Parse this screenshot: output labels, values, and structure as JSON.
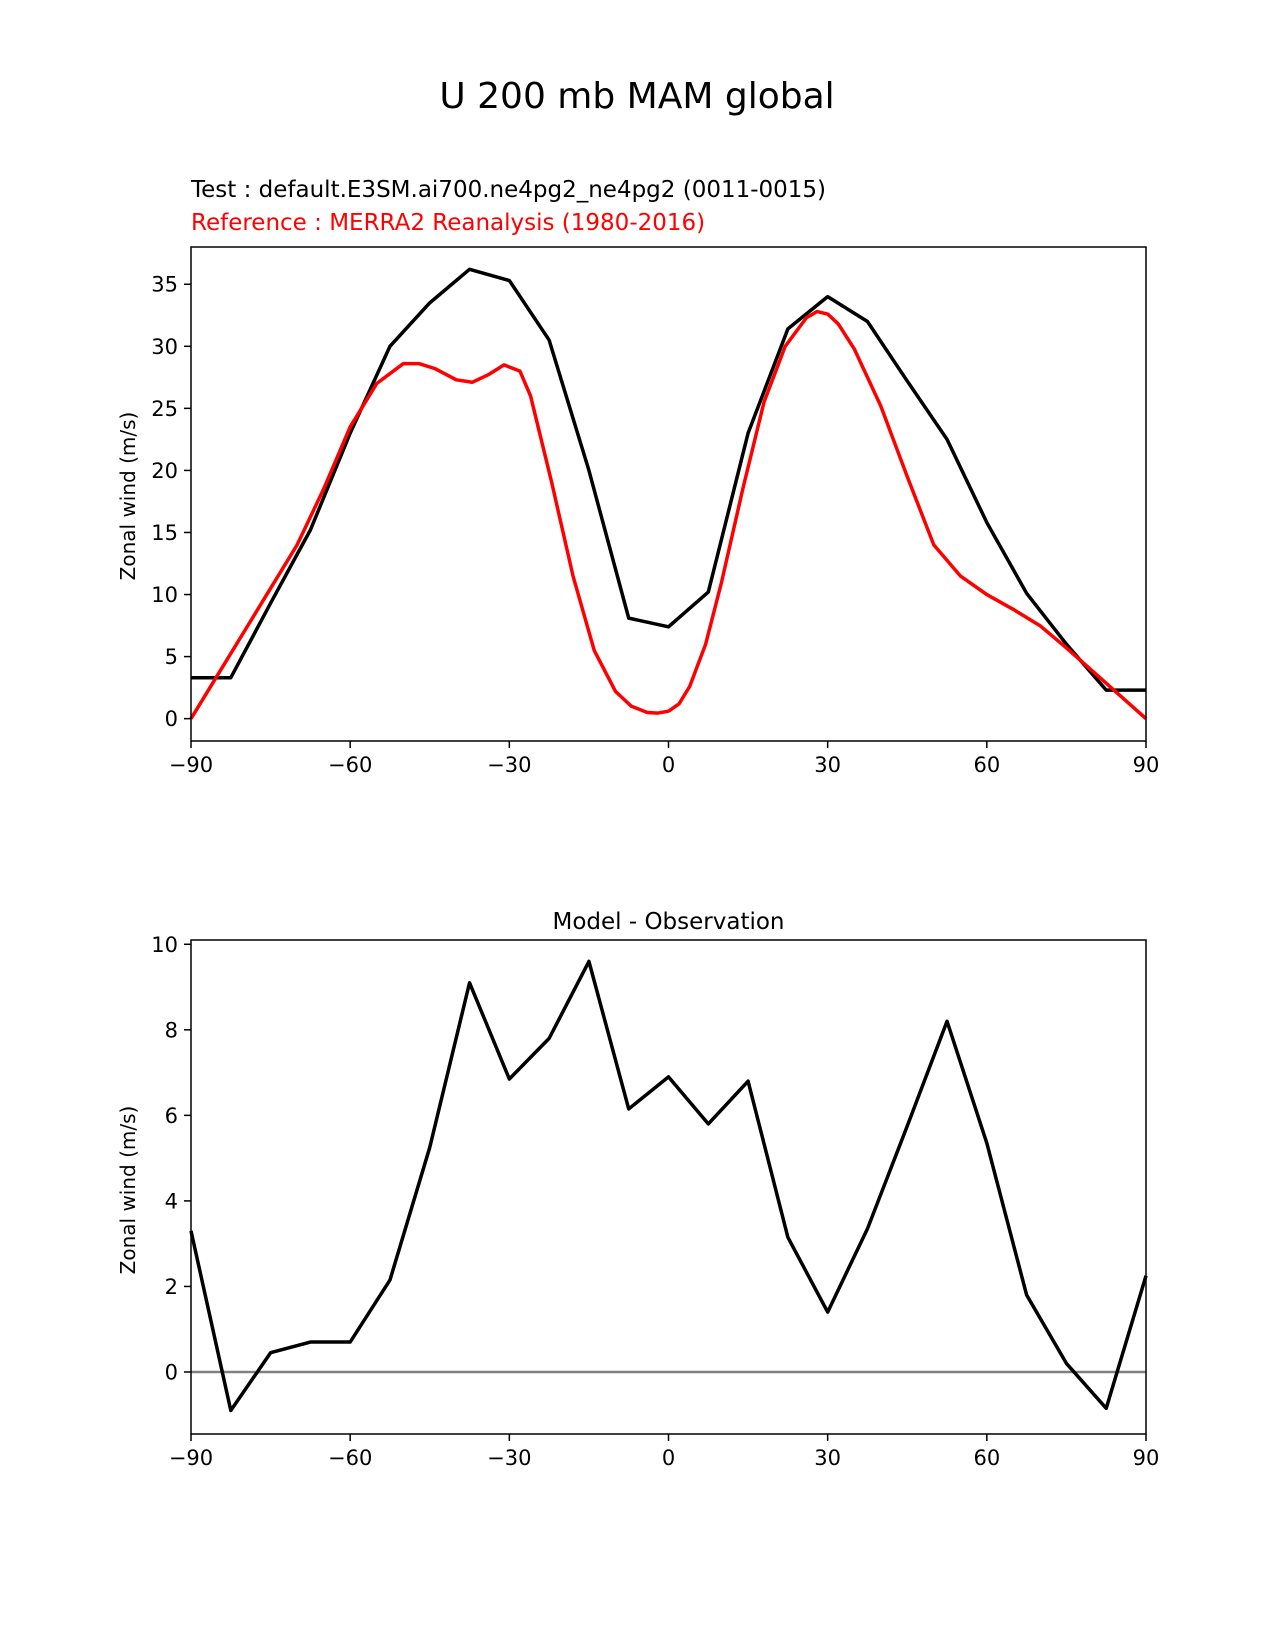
{
  "figure": {
    "title": "U 200 mb MAM global"
  },
  "colors": {
    "test": "#000000",
    "reference": "#ff0000",
    "zero_line": "#808080"
  },
  "chart_data": [
    {
      "type": "line",
      "test_label": "Test : default.E3SM.ai700.ne4pg2_ne4pg2 (0011-0015)",
      "reference_label": "Reference : MERRA2 Reanalysis (1980-2016)",
      "xlabel": "",
      "ylabel": "Zonal wind (m/s)",
      "xlim": [
        -90,
        90
      ],
      "ylim": [
        -1.8,
        38
      ],
      "xticks": [
        -90,
        -60,
        -30,
        0,
        30,
        60,
        90
      ],
      "xtick_labels": [
        "−90",
        "−60",
        "−30",
        "0",
        "30",
        "60",
        "90"
      ],
      "yticks": [
        0,
        5,
        10,
        15,
        20,
        25,
        30,
        35
      ],
      "series": [
        {
          "name": "Test",
          "color": "#000000",
          "x": [
            -90,
            -82.5,
            -75,
            -67.5,
            -60,
            -52.5,
            -45,
            -37.5,
            -30,
            -22.5,
            -15,
            -7.5,
            0,
            7.5,
            15,
            22.5,
            30,
            37.5,
            45,
            52.5,
            60,
            67.5,
            75,
            82.5,
            90
          ],
          "y": [
            3.3,
            3.3,
            9.3,
            15.2,
            23.0,
            30.0,
            33.5,
            36.2,
            35.3,
            30.5,
            20.0,
            8.1,
            7.4,
            10.2,
            23.0,
            31.4,
            34.0,
            32.0,
            27.2,
            22.5,
            15.8,
            10.1,
            6.0,
            2.3,
            2.3
          ]
        },
        {
          "name": "Reference",
          "color": "#ff0000",
          "x": [
            -90,
            -85,
            -80,
            -75,
            -70,
            -65,
            -60,
            -55,
            -50,
            -47,
            -44,
            -40,
            -37,
            -34,
            -31,
            -28,
            -26,
            -22,
            -18,
            -14,
            -10,
            -7,
            -4,
            -2,
            0,
            2,
            4,
            7,
            10,
            14,
            18,
            22,
            26,
            28,
            30,
            32,
            35,
            40,
            45,
            50,
            55,
            60,
            65,
            70,
            75,
            80,
            85,
            90
          ],
          "y": [
            0,
            3.5,
            7.0,
            10.5,
            14.0,
            18.5,
            23.5,
            27.0,
            28.6,
            28.6,
            28.2,
            27.3,
            27.1,
            27.7,
            28.5,
            28.0,
            26.0,
            19.0,
            11.5,
            5.5,
            2.2,
            1.0,
            0.5,
            0.45,
            0.6,
            1.2,
            2.6,
            6.0,
            11.0,
            18.5,
            25.5,
            30.0,
            32.3,
            32.8,
            32.6,
            31.8,
            29.8,
            25.2,
            19.5,
            14.0,
            11.5,
            10.0,
            8.8,
            7.5,
            5.7,
            3.8,
            1.9,
            0
          ]
        }
      ]
    },
    {
      "type": "line",
      "title": "Model - Observation",
      "xlabel": "",
      "ylabel": "Zonal wind (m/s)",
      "xlim": [
        -90,
        90
      ],
      "ylim": [
        -1.45,
        10.1
      ],
      "xticks": [
        -90,
        -60,
        -30,
        0,
        30,
        60,
        90
      ],
      "xtick_labels": [
        "−90",
        "−60",
        "−30",
        "0",
        "30",
        "60",
        "90"
      ],
      "yticks": [
        0,
        2,
        4,
        6,
        8,
        10
      ],
      "zero_line": 0,
      "series": [
        {
          "name": "Model - Observation",
          "color": "#000000",
          "x": [
            -90,
            -82.5,
            -75,
            -67.5,
            -60,
            -52.5,
            -45,
            -37.5,
            -30,
            -22.5,
            -15,
            -7.5,
            0,
            7.5,
            15,
            22.5,
            30,
            37.5,
            45,
            52.5,
            60,
            67.5,
            75,
            82.5,
            90
          ],
          "y": [
            3.3,
            -0.9,
            0.45,
            0.7,
            0.7,
            2.15,
            5.25,
            9.1,
            6.85,
            7.8,
            9.6,
            6.15,
            6.9,
            5.8,
            6.8,
            3.15,
            1.4,
            3.35,
            5.75,
            8.2,
            5.35,
            1.8,
            0.2,
            -0.85,
            2.25
          ]
        }
      ]
    }
  ]
}
